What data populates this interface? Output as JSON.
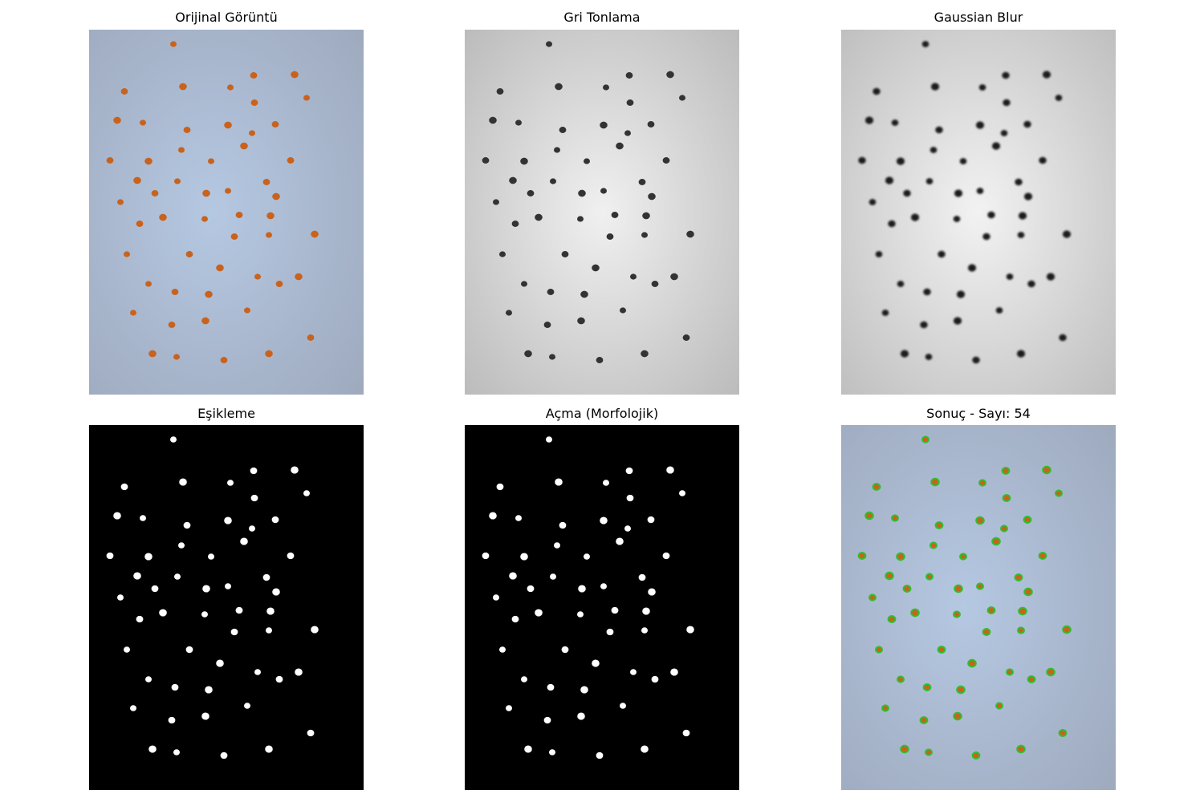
{
  "panels": [
    {
      "key": "original",
      "title": "Orijinal Görüntü"
    },
    {
      "key": "gray",
      "title": "Gri Tonlama"
    },
    {
      "key": "blur",
      "title": "Gaussian Blur"
    },
    {
      "key": "threshold",
      "title": "Eşikleme"
    },
    {
      "key": "opening",
      "title": "Açma (Morfolojik)"
    },
    {
      "key": "result",
      "title": "Sonuç - Sayı: 54"
    }
  ],
  "colors": {
    "paper_blue": "#a9bad3",
    "seed_orange": "#c9621c",
    "gray_paper": "#d8d8d8",
    "gray_dot": "#333333",
    "mask_bg": "#000000",
    "mask_dot": "#ffffff",
    "result_ring": "#2fbf2f"
  }
}
